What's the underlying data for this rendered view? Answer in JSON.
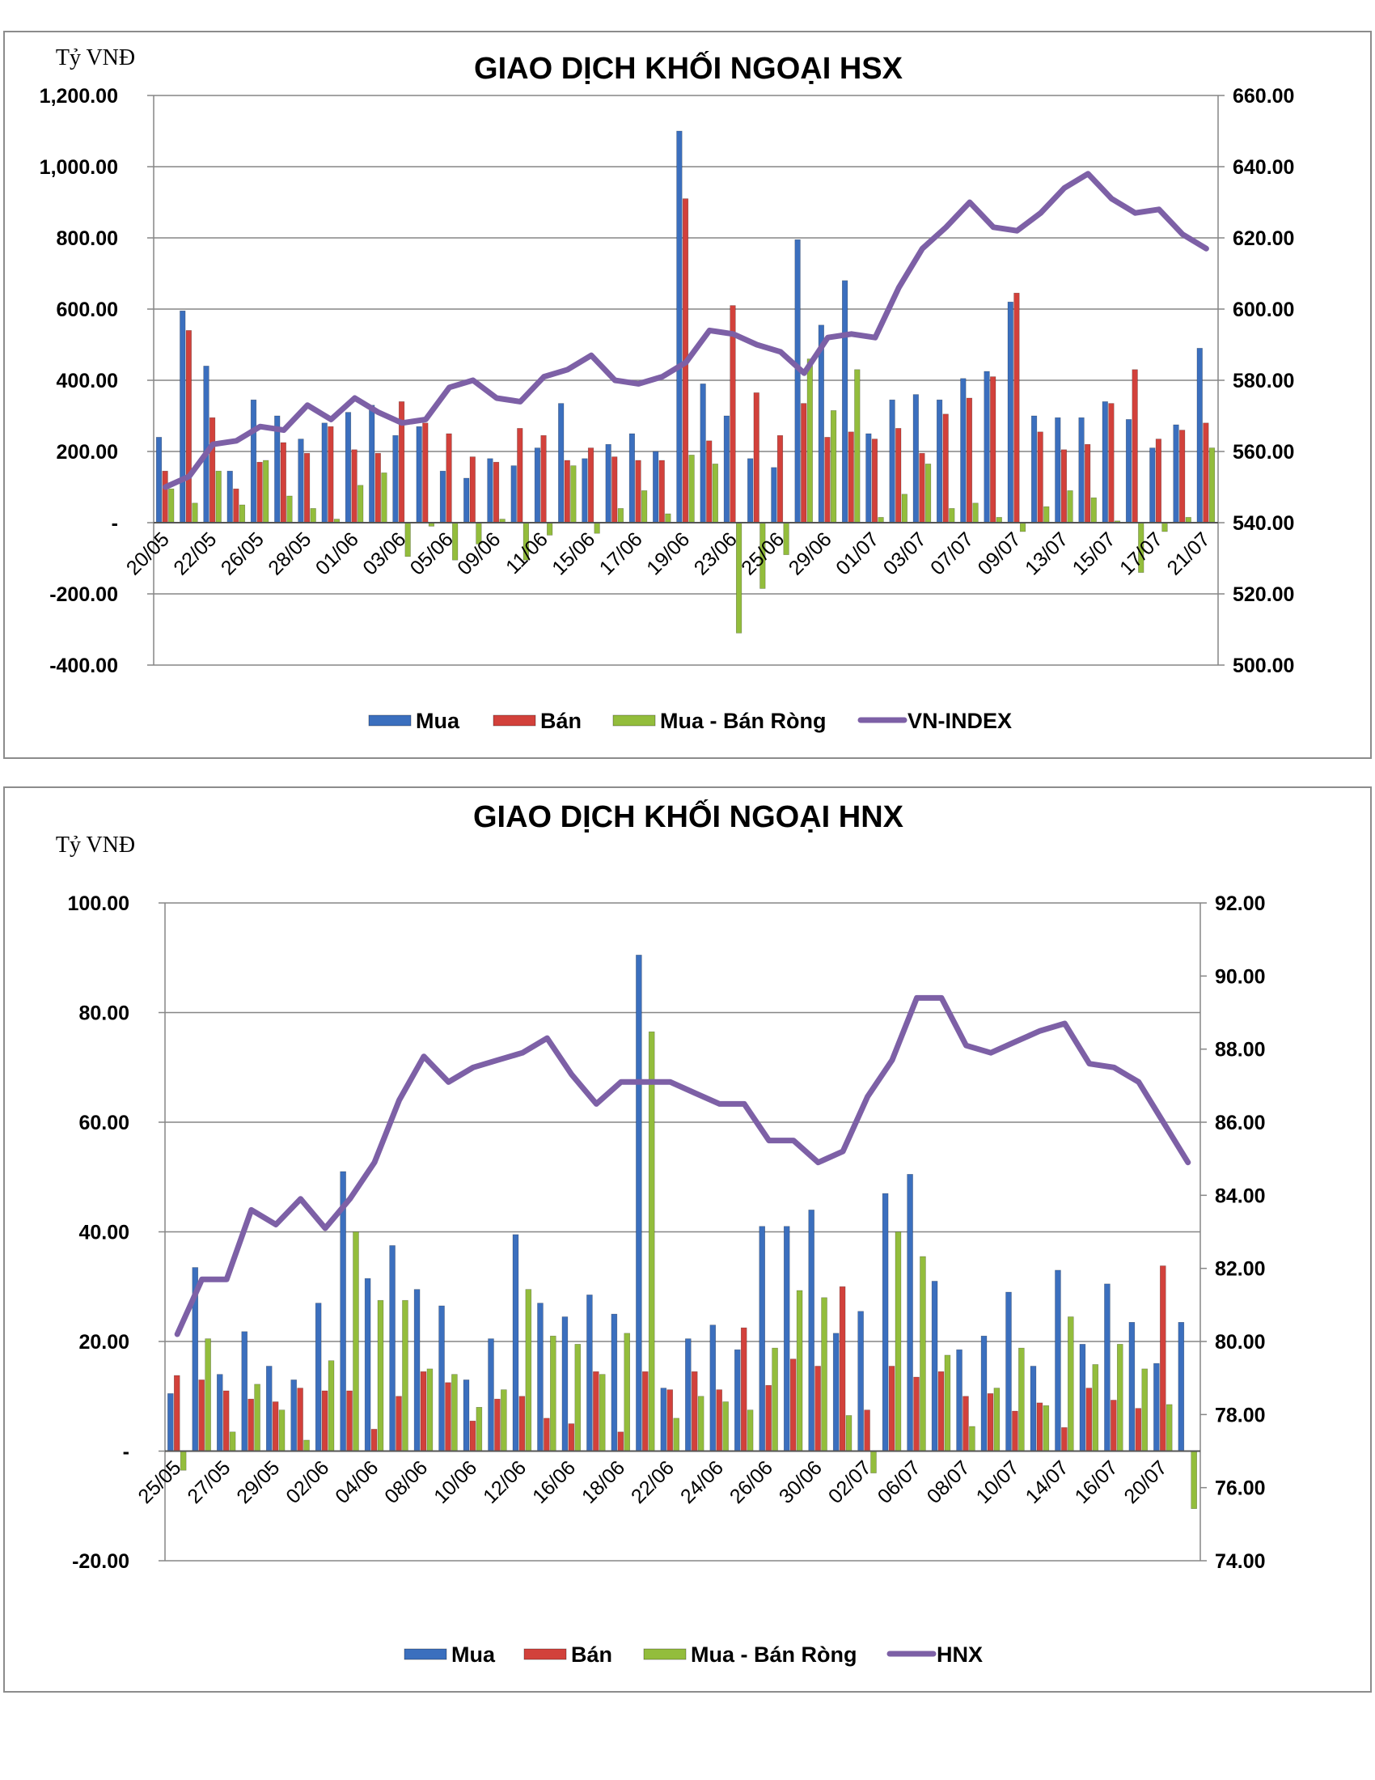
{
  "colors": {
    "buy": "#3b6fbe",
    "sell": "#d2413b",
    "net": "#93bd3c",
    "index": "#7d60a6",
    "grid": "#868686"
  },
  "chart_data": [
    {
      "id": "hsx",
      "type": "bar+line",
      "title": "GIAO DỊCH KHỐI NGOẠI HSX",
      "unit_label": "Tỷ VNĐ",
      "ylim": [
        -400,
        1200
      ],
      "y_ticks": [
        -400,
        -200,
        0,
        200,
        400,
        600,
        800,
        1000,
        1200
      ],
      "y_tick_labels": [
        "-400.00",
        "-200.00",
        "-",
        "200.00",
        "400.00",
        "600.00",
        "800.00",
        "1,000.00",
        "1,200.00"
      ],
      "y2lim": [
        500,
        660
      ],
      "y2_ticks": [
        500,
        520,
        540,
        560,
        580,
        600,
        620,
        640,
        660
      ],
      "y2_tick_labels": [
        "500.00",
        "520.00",
        "540.00",
        "560.00",
        "580.00",
        "600.00",
        "620.00",
        "640.00",
        "660.00"
      ],
      "categories": [
        "20/05",
        "21/05",
        "22/05",
        "25/05",
        "26/05",
        "27/05",
        "28/05",
        "29/05",
        "01/06",
        "02/06",
        "03/06",
        "04/06",
        "05/06",
        "08/06",
        "09/06",
        "10/06",
        "11/06",
        "12/06",
        "15/06",
        "16/06",
        "17/06",
        "18/06",
        "19/06",
        "22/06",
        "23/06",
        "24/06",
        "25/06",
        "26/06",
        "29/06",
        "30/06",
        "01/07",
        "02/07",
        "03/07",
        "06/07",
        "07/07",
        "08/07",
        "09/07",
        "10/07",
        "13/07",
        "14/07",
        "15/07",
        "16/07",
        "17/07",
        "20/07",
        "21/07"
      ],
      "x_tick_labels": [
        "20/05",
        "",
        "22/05",
        "",
        "26/05",
        "",
        "28/05",
        "",
        "01/06",
        "",
        "03/06",
        "",
        "05/06",
        "",
        "09/06",
        "",
        "11/06",
        "",
        "15/06",
        "",
        "17/06",
        "",
        "19/06",
        "",
        "23/06",
        "",
        "25/06",
        "",
        "29/06",
        "",
        "01/07",
        "",
        "03/07",
        "",
        "07/07",
        "",
        "09/07",
        "",
        "13/07",
        "",
        "15/07",
        "",
        "17/07",
        "",
        "21/07"
      ],
      "series": [
        {
          "name": "Mua",
          "kind": "bar",
          "color_key": "buy",
          "values": [
            240,
            595,
            440,
            145,
            345,
            300,
            235,
            280,
            310,
            330,
            245,
            270,
            145,
            125,
            180,
            160,
            210,
            335,
            180,
            220,
            250,
            200,
            1100,
            390,
            300,
            180,
            155,
            795,
            555,
            680,
            250,
            345,
            360,
            345,
            405,
            425,
            620,
            300,
            295,
            295,
            340,
            290,
            210,
            275,
            490
          ]
        },
        {
          "name": "Bán",
          "kind": "bar",
          "color_key": "sell",
          "values": [
            145,
            540,
            295,
            95,
            170,
            225,
            195,
            270,
            205,
            195,
            340,
            280,
            250,
            185,
            170,
            265,
            245,
            175,
            210,
            185,
            175,
            175,
            910,
            230,
            610,
            365,
            245,
            335,
            240,
            255,
            235,
            265,
            195,
            305,
            350,
            410,
            645,
            255,
            205,
            220,
            335,
            430,
            235,
            260,
            280
          ]
        },
        {
          "name": "Mua - Bán Ròng",
          "kind": "bar",
          "color_key": "net",
          "values": [
            95,
            55,
            145,
            50,
            175,
            75,
            40,
            10,
            105,
            140,
            -95,
            -10,
            -105,
            -60,
            10,
            -105,
            -35,
            160,
            -30,
            40,
            90,
            25,
            190,
            165,
            -310,
            -185,
            -90,
            460,
            315,
            430,
            15,
            80,
            165,
            40,
            55,
            15,
            -25,
            45,
            90,
            70,
            5,
            -140,
            -25,
            15,
            210
          ]
        },
        {
          "name": "VN-INDEX",
          "kind": "line",
          "color_key": "index",
          "values": [
            550,
            553,
            562,
            563,
            567,
            566,
            573,
            569,
            575,
            571,
            568,
            569,
            578,
            580,
            575,
            574,
            581,
            583,
            587,
            580,
            579,
            581,
            585,
            594,
            593,
            590,
            588,
            582,
            592,
            593,
            592,
            606,
            617,
            623,
            630,
            623,
            622,
            627,
            634,
            638,
            631,
            627,
            628,
            621,
            617
          ]
        }
      ]
    },
    {
      "id": "hnx",
      "type": "bar+line",
      "title": "GIAO DỊCH KHỐI NGOẠI HNX",
      "unit_label": "Tỷ VNĐ",
      "ylim": [
        -20,
        100
      ],
      "y_ticks": [
        -20,
        0,
        20,
        40,
        60,
        80,
        100
      ],
      "y_tick_labels": [
        "-20.00",
        "-",
        "20.00",
        "40.00",
        "60.00",
        "80.00",
        "100.00"
      ],
      "y2lim": [
        74,
        92
      ],
      "y2_ticks": [
        74,
        76,
        78,
        80,
        82,
        84,
        86,
        88,
        90,
        92
      ],
      "y2_tick_labels": [
        "74.00",
        "76.00",
        "78.00",
        "80.00",
        "82.00",
        "84.00",
        "86.00",
        "88.00",
        "90.00",
        "92.00"
      ],
      "categories": [
        "25/05",
        "26/05",
        "27/05",
        "28/05",
        "29/05",
        "01/06",
        "02/06",
        "03/06",
        "04/06",
        "05/06",
        "08/06",
        "09/06",
        "10/06",
        "11/06",
        "12/06",
        "15/06",
        "16/06",
        "17/06",
        "18/06",
        "19/06",
        "22/06",
        "23/06",
        "24/06",
        "25/06",
        "26/06",
        "29/06",
        "30/06",
        "01/07",
        "02/07",
        "03/07",
        "06/07",
        "07/07",
        "08/07",
        "09/07",
        "10/07",
        "13/07",
        "14/07",
        "15/07",
        "16/07",
        "17/07",
        "20/07",
        "21/07"
      ],
      "x_tick_labels": [
        "25/05",
        "",
        "27/05",
        "",
        "29/05",
        "",
        "02/06",
        "",
        "04/06",
        "",
        "08/06",
        "",
        "10/06",
        "",
        "12/06",
        "",
        "16/06",
        "",
        "18/06",
        "",
        "22/06",
        "",
        "24/06",
        "",
        "26/06",
        "",
        "30/06",
        "",
        "02/07",
        "",
        "06/07",
        "",
        "08/07",
        "",
        "10/07",
        "",
        "14/07",
        "",
        "16/07",
        "",
        "20/07",
        ""
      ],
      "series": [
        {
          "name": "Mua",
          "kind": "bar",
          "color_key": "buy",
          "values": [
            10.5,
            33.5,
            14,
            21.8,
            15.5,
            13,
            27,
            51,
            31.5,
            37.5,
            29.5,
            26.5,
            13,
            20.5,
            39.5,
            27,
            24.5,
            28.5,
            25,
            90.5,
            11.5,
            20.5,
            23,
            18.5,
            41,
            41,
            44,
            21.5,
            25.5,
            47,
            50.5,
            31,
            18.5,
            21,
            29,
            15.5,
            33,
            19.5,
            30.5,
            23.5,
            16,
            23.5
          ]
        },
        {
          "name": "Bán",
          "kind": "bar",
          "color_key": "sell",
          "values": [
            13.8,
            13,
            11,
            9.5,
            9,
            11.5,
            11,
            11,
            4,
            10,
            14.5,
            12.5,
            5.5,
            9.5,
            10,
            6,
            5,
            14.5,
            3.5,
            14.5,
            11.2,
            14.5,
            11.2,
            22.5,
            12,
            16.8,
            15.5,
            30,
            7.5,
            15.5,
            13.5,
            14.5,
            10,
            10.5,
            7.3,
            8.8,
            4.3,
            11.5,
            9.3,
            7.8,
            33.8,
            0
          ]
        },
        {
          "name": "Mua - Bán Ròng",
          "kind": "bar",
          "color_key": "net",
          "values": [
            -3.5,
            20.5,
            3.5,
            12.2,
            7.5,
            2,
            16.5,
            40,
            27.5,
            27.5,
            15,
            14,
            8,
            11.2,
            29.5,
            21,
            19.5,
            14,
            21.5,
            76.5,
            6,
            10,
            9,
            7.5,
            18.8,
            29.3,
            28,
            6.5,
            -4,
            40,
            35.5,
            17.5,
            4.5,
            11.5,
            18.8,
            8.3,
            24.5,
            15.8,
            19.5,
            15,
            8.5,
            -10.5
          ]
        },
        {
          "name": "HNX",
          "kind": "line",
          "color_key": "index",
          "values": [
            80.2,
            81.7,
            81.7,
            83.6,
            83.2,
            83.9,
            83.1,
            83.9,
            84.9,
            86.6,
            87.8,
            87.1,
            87.5,
            87.7,
            87.9,
            88.3,
            87.3,
            86.5,
            87.1,
            87.1,
            87.1,
            86.8,
            86.5,
            86.5,
            85.5,
            85.5,
            84.9,
            85.2,
            86.7,
            87.7,
            89.4,
            89.4,
            88.1,
            87.9,
            88.2,
            88.5,
            88.7,
            87.6,
            87.5,
            87.1,
            86,
            84.9
          ]
        }
      ]
    }
  ]
}
